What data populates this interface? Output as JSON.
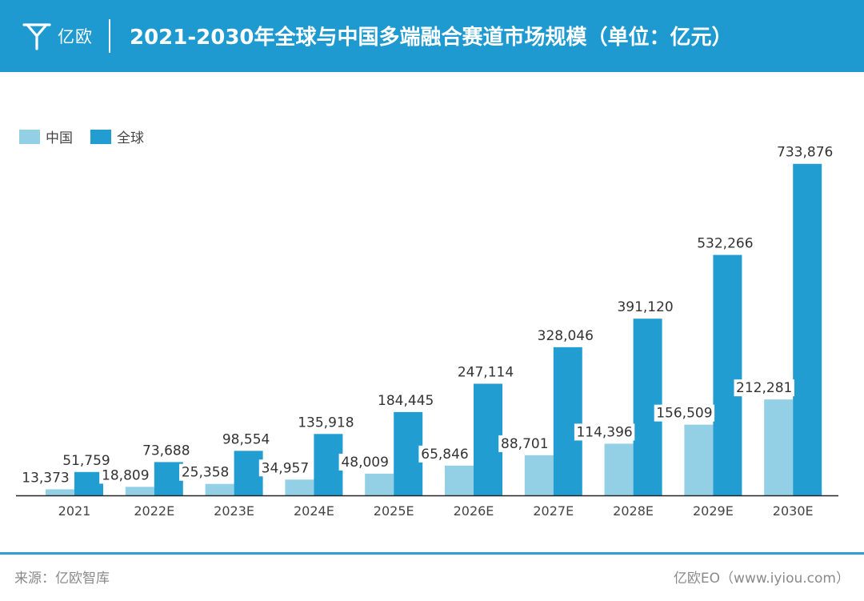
{
  "header": {
    "logo_text": "亿欧",
    "logo_icon": "yiou-logo-icon",
    "title": "2021-2030年全球与中国多端融合赛道市场规模（单位：亿元）"
  },
  "colors": {
    "header_bg": "#1f9ad0",
    "china": "#93d0e6",
    "global": "#229dd2",
    "axis": "#222222"
  },
  "chart_data": {
    "type": "bar",
    "title": "2021-2030年全球与中国多端融合赛道市场规模（单位：亿元）",
    "unit": "亿元",
    "categories": [
      "2021",
      "2022E",
      "2023E",
      "2024E",
      "2025E",
      "2026E",
      "2027E",
      "2028E",
      "2029E",
      "2030E"
    ],
    "series": [
      {
        "name": "中国",
        "values": [
          13373,
          18809,
          25358,
          34957,
          48009,
          65846,
          88701,
          114396,
          156509,
          212281
        ]
      },
      {
        "name": "全球",
        "values": [
          51759,
          73688,
          98554,
          135918,
          184445,
          247114,
          328046,
          391120,
          532266,
          733876
        ]
      }
    ],
    "ylim": [
      0,
      760000
    ],
    "legend_position": "top-left",
    "grid": false,
    "data_labels": true
  },
  "footer": {
    "source": "来源：亿欧智库",
    "credit": "亿欧EO（www.iyiou.com）"
  }
}
